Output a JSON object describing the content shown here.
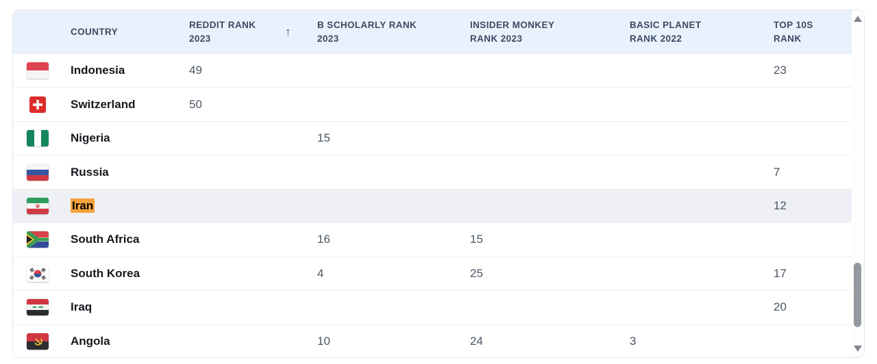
{
  "table": {
    "columns": [
      {
        "id": "country",
        "label": "COUNTRY",
        "sorted": false
      },
      {
        "id": "reddit",
        "label": "REDDIT RANK 2023",
        "sorted": true
      },
      {
        "id": "b_scholarly",
        "label": "B SCHOLARLY RANK 2023",
        "sorted": false
      },
      {
        "id": "insider_monkey",
        "label": "INSIDER MONKEY RANK 2023",
        "sorted": false
      },
      {
        "id": "basic_planet",
        "label": "BASIC PLANET RANK 2022",
        "sorted": false
      },
      {
        "id": "top10s",
        "label": "TOP 10S RANK",
        "sorted": false
      }
    ],
    "sort_icon": "↑",
    "rows": [
      {
        "flag": "indonesia",
        "country": "Indonesia",
        "reddit": "49",
        "b_scholarly": "",
        "insider_monkey": "",
        "basic_planet": "",
        "top10s": "23",
        "highlighted": false,
        "match_highlight": false
      },
      {
        "flag": "switzerland",
        "country": "Switzerland",
        "reddit": "50",
        "b_scholarly": "",
        "insider_monkey": "",
        "basic_planet": "",
        "top10s": "",
        "highlighted": false,
        "match_highlight": false
      },
      {
        "flag": "nigeria",
        "country": "Nigeria",
        "reddit": "",
        "b_scholarly": "15",
        "insider_monkey": "",
        "basic_planet": "",
        "top10s": "",
        "highlighted": false,
        "match_highlight": false
      },
      {
        "flag": "russia",
        "country": "Russia",
        "reddit": "",
        "b_scholarly": "",
        "insider_monkey": "",
        "basic_planet": "",
        "top10s": "7",
        "highlighted": false,
        "match_highlight": false
      },
      {
        "flag": "iran",
        "country": "Iran",
        "reddit": "",
        "b_scholarly": "",
        "insider_monkey": "",
        "basic_planet": "",
        "top10s": "12",
        "highlighted": true,
        "match_highlight": true
      },
      {
        "flag": "south_africa",
        "country": "South Africa",
        "reddit": "",
        "b_scholarly": "16",
        "insider_monkey": "15",
        "basic_planet": "",
        "top10s": "",
        "highlighted": false,
        "match_highlight": false
      },
      {
        "flag": "south_korea",
        "country": "South Korea",
        "reddit": "",
        "b_scholarly": "4",
        "insider_monkey": "25",
        "basic_planet": "",
        "top10s": "17",
        "highlighted": false,
        "match_highlight": false
      },
      {
        "flag": "iraq",
        "country": "Iraq",
        "reddit": "",
        "b_scholarly": "",
        "insider_monkey": "",
        "basic_planet": "",
        "top10s": "20",
        "highlighted": false,
        "match_highlight": false
      },
      {
        "flag": "angola",
        "country": "Angola",
        "reddit": "",
        "b_scholarly": "10",
        "insider_monkey": "24",
        "basic_planet": "3",
        "top10s": "",
        "highlighted": false,
        "match_highlight": false
      }
    ]
  },
  "colors": {
    "header_bg": "#e9f2fc",
    "header_text": "#3a4a63",
    "row_highlight_bg": "#eef0f6",
    "match_highlight": "#f5a33c",
    "country_text": "#15181d",
    "value_text": "#4b5563"
  }
}
